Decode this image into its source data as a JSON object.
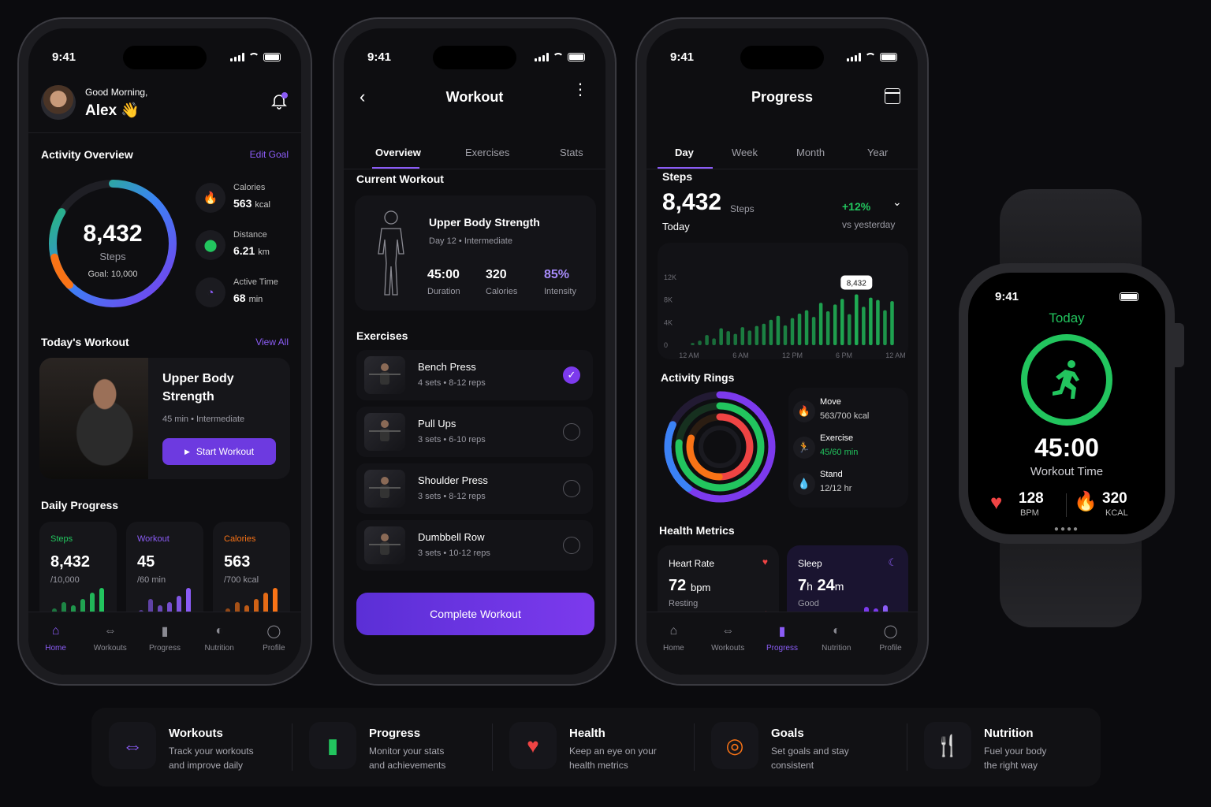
{
  "status_time": "9:41",
  "home": {
    "greeting": "Good Morning,",
    "name": "Alex 👋",
    "activity_title": "Activity Overview",
    "edit_goal": "Edit Goal",
    "steps_value": "8,432",
    "steps_label": "Steps",
    "goal_label": "Goal: 10,000",
    "stats": [
      {
        "label": "Calories",
        "value": "563",
        "unit": "kcal",
        "icon": "flame-icon",
        "color": "#f97316"
      },
      {
        "label": "Distance",
        "value": "6.21",
        "unit": "km",
        "icon": "location-pin-icon",
        "color": "#22c55e"
      },
      {
        "label": "Active Time",
        "value": "68",
        "unit": "min",
        "icon": "timer-icon",
        "color": "#8b5cf6"
      }
    ],
    "todays_workout_title": "Today's Workout",
    "view_all": "View All",
    "workout_name_line1": "Upper Body",
    "workout_name_line2": "Strength",
    "workout_meta": "45 min • Intermediate",
    "start_button": "Start Workout",
    "daily_progress_title": "Daily Progress",
    "daily": [
      {
        "label": "Steps",
        "value": "8,432",
        "sub": "/10,000",
        "color": "#22c55e"
      },
      {
        "label": "Workout",
        "value": "45",
        "sub": "/60 min",
        "color": "#8b5cf6"
      },
      {
        "label": "Calories",
        "value": "563",
        "sub": "/700 kcal",
        "color": "#f97316"
      }
    ]
  },
  "tabs_left": [
    {
      "label": "Home",
      "icon": "home-icon"
    },
    {
      "label": "Workouts",
      "icon": "dumbbell-icon"
    },
    {
      "label": "Progress",
      "icon": "bar-chart-icon"
    },
    {
      "label": "Nutrition",
      "icon": "apple-icon"
    },
    {
      "label": "Profile",
      "icon": "person-icon"
    }
  ],
  "workout": {
    "title": "Workout",
    "segments": [
      "Overview",
      "Exercises",
      "Stats"
    ],
    "current_title": "Current Workout",
    "name": "Upper Body Strength",
    "meta": "Day 12 • Intermediate",
    "metrics": [
      {
        "value": "45:00",
        "label": "Duration"
      },
      {
        "value": "320",
        "label": "Calories"
      },
      {
        "value": "85%",
        "label": "Intensity"
      }
    ],
    "exercises_title": "Exercises",
    "exercises": [
      {
        "name": "Bench Press",
        "meta": "4 sets • 8-12 reps",
        "done": true
      },
      {
        "name": "Pull Ups",
        "meta": "3 sets • 6-10 reps",
        "done": false
      },
      {
        "name": "Shoulder Press",
        "meta": "3 sets • 8-12 reps",
        "done": false
      },
      {
        "name": "Dumbbell Row",
        "meta": "3 sets • 10-12 reps",
        "done": false
      }
    ],
    "complete_button": "Complete Workout"
  },
  "progress": {
    "title": "Progress",
    "segments": [
      "Day",
      "Week",
      "Month",
      "Year"
    ],
    "steps_title": "Steps",
    "steps_value": "8,432",
    "steps_unit": "Steps",
    "today": "Today",
    "change": "+12%",
    "change_sub": "vs yesterday",
    "tooltip": "8,432",
    "y_ticks": [
      "12K",
      "8K",
      "4K",
      "0"
    ],
    "x_ticks": [
      "12 AM",
      "6 AM",
      "12 PM",
      "6 PM",
      "12 AM"
    ],
    "rings_title": "Activity Rings",
    "rings": [
      {
        "label": "Move",
        "value": "563/700 kcal",
        "icon": "flame-icon",
        "color": "#f97316"
      },
      {
        "label": "Exercise",
        "value": "45/60 min",
        "icon": "runner-icon",
        "color": "#22c55e"
      },
      {
        "label": "Stand",
        "value": "12/12 hr",
        "icon": "drop-icon",
        "color": "#3b82f6"
      }
    ],
    "health_title": "Health Metrics",
    "heart_title": "Heart Rate",
    "heart_value": "72",
    "heart_unit": "bpm",
    "heart_sub": "Resting",
    "sleep_title": "Sleep",
    "sleep_h": "7",
    "sleep_hu": "h",
    "sleep_m": "24",
    "sleep_mu": "m",
    "sleep_sub": "Good"
  },
  "chart_data": {
    "type": "bar",
    "y_range": [
      0,
      12000
    ],
    "values": [
      400,
      800,
      1800,
      1200,
      3000,
      2500,
      2000,
      3200,
      2600,
      3400,
      3800,
      4500,
      5200,
      3500,
      4800,
      5600,
      6200,
      5000,
      7500,
      6000,
      7200,
      8200,
      5500,
      9000,
      6800,
      8432,
      8000,
      6200,
      7800
    ]
  },
  "watch": {
    "time": "9:41",
    "today": "Today",
    "timer": "45:00",
    "timer_label": "Workout Time",
    "bpm_value": "128",
    "bpm_label": "BPM",
    "kcal_value": "320",
    "kcal_label": "KCAL"
  },
  "features": [
    {
      "title": "Workouts",
      "desc1": "Track your workouts",
      "desc2": "and improve daily",
      "icon": "dumbbell-icon",
      "color": "#8b5cf6"
    },
    {
      "title": "Progress",
      "desc1": "Monitor your stats",
      "desc2": "and achievements",
      "icon": "bar-chart-icon",
      "color": "#22c55e"
    },
    {
      "title": "Health",
      "desc1": "Keep an eye on your",
      "desc2": "health metrics",
      "icon": "heart-icon",
      "color": "#ef4444"
    },
    {
      "title": "Goals",
      "desc1": "Set goals and stay",
      "desc2": "consistent",
      "icon": "target-icon",
      "color": "#f97316"
    },
    {
      "title": "Nutrition",
      "desc1": "Fuel your body",
      "desc2": "the right way",
      "icon": "utensils-icon",
      "color": "#3b82f6"
    }
  ]
}
